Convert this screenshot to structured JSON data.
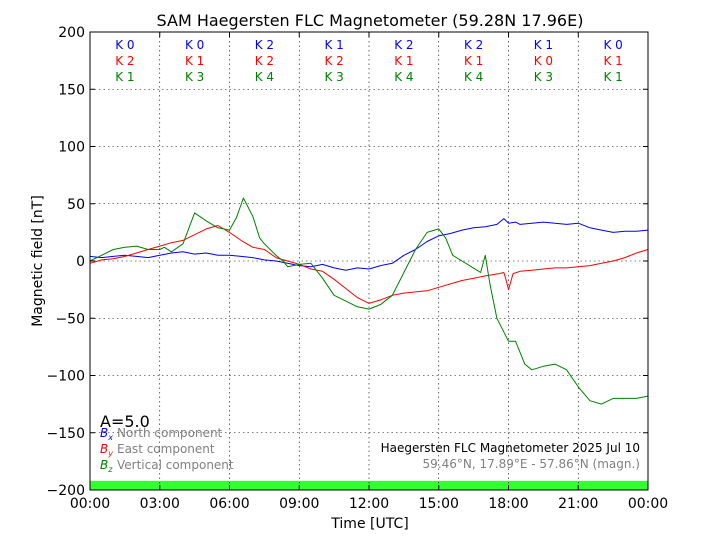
{
  "chart_data": {
    "type": "line",
    "title": "SAM Haegersten FLC Magnetometer (59.28N 17.96E)",
    "xlabel": "Time [UTC]",
    "ylabel": "Magnetic field [nT]",
    "ylim": [
      -200,
      200
    ],
    "xlim_hours": [
      0,
      24
    ],
    "x_ticks": [
      "00:00",
      "03:00",
      "06:00",
      "09:00",
      "12:00",
      "15:00",
      "18:00",
      "21:00",
      "00:00"
    ],
    "y_ticks": [
      200,
      150,
      100,
      50,
      0,
      -50,
      -100,
      -150,
      -200
    ],
    "grid": true,
    "a_index": "A=5.0",
    "k_indices": {
      "north": [
        "K 0",
        "K 0",
        "K 2",
        "K 1",
        "K 2",
        "K 2",
        "K 1",
        "K 0"
      ],
      "east": [
        "K 2",
        "K 1",
        "K 2",
        "K 2",
        "K 1",
        "K 1",
        "K 0",
        "K 1"
      ],
      "vertical": [
        "K 1",
        "K 3",
        "K 4",
        "K 3",
        "K 4",
        "K 4",
        "K 3",
        "K 1"
      ]
    },
    "legend": [
      {
        "symbol": "B",
        "sub": "x",
        "label": "North component",
        "color": "#0000ff"
      },
      {
        "symbol": "B",
        "sub": "y",
        "label": "East component",
        "color": "#ff0000"
      },
      {
        "symbol": "B",
        "sub": "z",
        "label": "Vertical component",
        "color": "#008000"
      }
    ],
    "legend_position": "bottom-left",
    "info_line1": "Haegersten FLC Magnetometer 2025 Jul 10",
    "info_line2": "59.46°N, 17.89°E - 57.86°N (magn.)",
    "activity_bar_color": "#33ff33",
    "series": [
      {
        "name": "North component",
        "color": "#0000ff",
        "x": [
          0,
          0.5,
          1,
          1.5,
          2,
          2.5,
          3,
          3.5,
          4,
          4.5,
          5,
          5.5,
          6,
          6.5,
          7,
          7.5,
          8,
          8.5,
          9,
          9.5,
          10,
          10.5,
          11,
          11.5,
          12,
          12.5,
          13,
          13.5,
          14,
          14.5,
          15,
          15.5,
          16,
          16.5,
          17,
          17.5,
          17.8,
          18,
          18.3,
          18.5,
          19,
          19.5,
          20,
          20.5,
          21,
          21.5,
          22,
          22.5,
          23,
          23.5,
          24
        ],
        "y": [
          4,
          3,
          4,
          5,
          4,
          3,
          5,
          7,
          8,
          6,
          7,
          5,
          5,
          4,
          3,
          1,
          0,
          -2,
          -4,
          -5,
          -3,
          -6,
          -8,
          -6,
          -7,
          -4,
          -2,
          5,
          10,
          17,
          22,
          24,
          27,
          29,
          30,
          32,
          37,
          33,
          34,
          32,
          33,
          34,
          33,
          32,
          33,
          29,
          27,
          25,
          26,
          26,
          27
        ]
      },
      {
        "name": "East component",
        "color": "#ff0000",
        "x": [
          0,
          0.5,
          1,
          1.5,
          2,
          2.5,
          3,
          3.5,
          4,
          4.5,
          5,
          5.5,
          6,
          6.5,
          7,
          7.5,
          8,
          8.5,
          9,
          9.5,
          10,
          10.5,
          11,
          11.5,
          12,
          12.5,
          13,
          13.5,
          14,
          14.5,
          15,
          15.5,
          16,
          16.5,
          17,
          17.3,
          17.6,
          17.8,
          17.9,
          18,
          18.2,
          18.5,
          19,
          19.5,
          20,
          20.5,
          21,
          21.5,
          22,
          22.5,
          23,
          23.5,
          24
        ],
        "y": [
          -2,
          1,
          2,
          4,
          7,
          10,
          13,
          16,
          18,
          23,
          28,
          31,
          25,
          18,
          12,
          10,
          3,
          0,
          -3,
          -7,
          -9,
          -16,
          -24,
          -32,
          -37,
          -34,
          -30,
          -28,
          -27,
          -26,
          -23,
          -20,
          -17,
          -15,
          -13,
          -12,
          -11,
          -10,
          -17,
          -25,
          -11,
          -9,
          -8,
          -7,
          -6,
          -6,
          -5,
          -4,
          -2,
          0,
          3,
          7,
          10
        ]
      },
      {
        "name": "Vertical component",
        "color": "#008000",
        "x": [
          0,
          0.5,
          1,
          1.5,
          2,
          2.5,
          3,
          3.2,
          3.5,
          4,
          4.5,
          5,
          5.5,
          6,
          6.3,
          6.6,
          7,
          7.3,
          7.5,
          8,
          8.3,
          8.5,
          9,
          9.5,
          10,
          10.5,
          11,
          11.5,
          12,
          12.5,
          13,
          13.5,
          14,
          14.5,
          15,
          15.3,
          15.6,
          16,
          16.4,
          16.8,
          17,
          17.2,
          17.5,
          18,
          18.3,
          18.7,
          19,
          19.5,
          20,
          20.5,
          21,
          21.5,
          22,
          22.5,
          23,
          23.5,
          24
        ],
        "y": [
          0,
          5,
          10,
          12,
          13,
          10,
          10,
          12,
          8,
          15,
          42,
          35,
          29,
          27,
          38,
          55,
          39,
          20,
          15,
          5,
          0,
          -5,
          -3,
          -2,
          -15,
          -30,
          -35,
          -40,
          -42,
          -38,
          -30,
          -10,
          10,
          25,
          28,
          20,
          5,
          0,
          -5,
          -10,
          5,
          -20,
          -50,
          -70,
          -70,
          -90,
          -95,
          -92,
          -90,
          -95,
          -110,
          -122,
          -125,
          -120,
          -120,
          -120,
          -118
        ]
      }
    ]
  }
}
